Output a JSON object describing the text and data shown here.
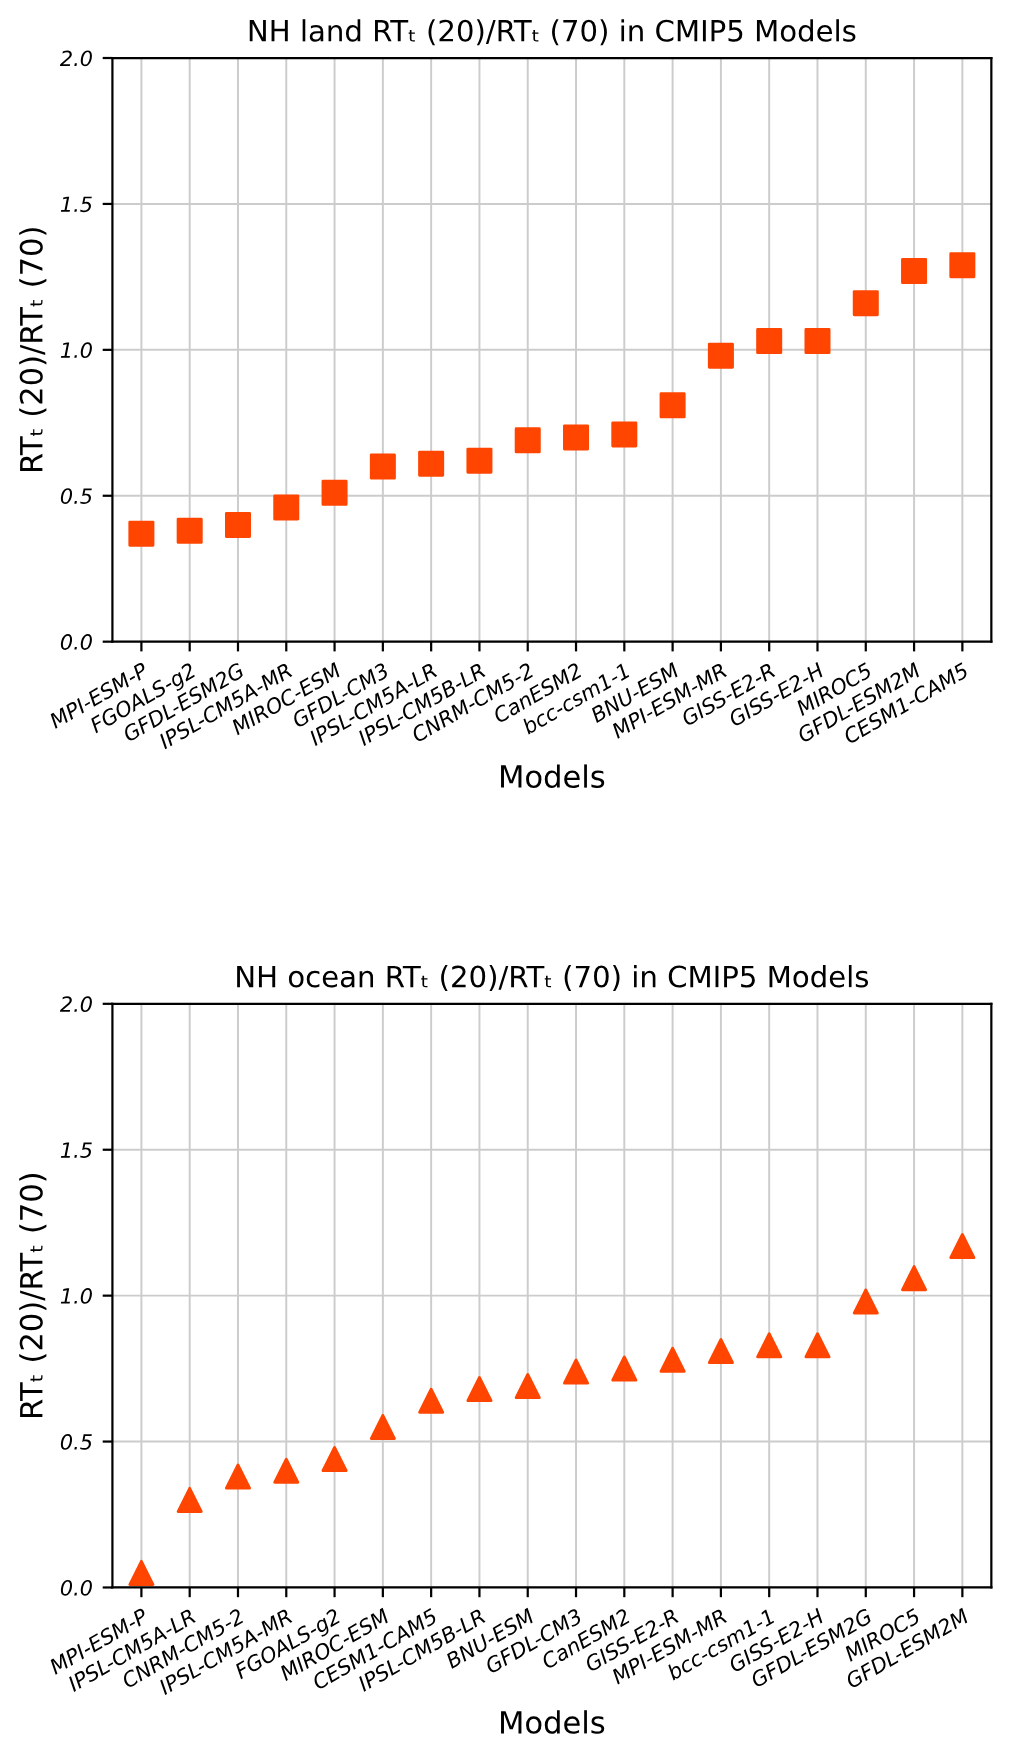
{
  "chart_data": [
    {
      "type": "scatter",
      "title": "NH land RTₜ (20)/RTₜ (70) in CMIP5 Models",
      "xlabel": "Models",
      "ylabel": "RTₜ (20)/RTₜ (70)",
      "categories": [
        "MPI-ESM-P",
        "FGOALS-g2",
        "GFDL-ESM2G",
        "IPSL-CM5A-MR",
        "MIROC-ESM",
        "GFDL-CM3",
        "IPSL-CM5A-LR",
        "IPSL-CM5B-LR",
        "CNRM-CM5-2",
        "CanESM2",
        "bcc-csm1-1",
        "BNU-ESM",
        "MPI-ESM-MR",
        "GISS-E2-R",
        "GISS-E2-H",
        "MIROC5",
        "GFDL-ESM2M",
        "CESM1-CAM5"
      ],
      "series": [
        {
          "color": "#ff4500",
          "values": [
            0.37,
            0.38,
            0.4,
            0.46,
            0.51,
            0.6,
            0.61,
            0.62,
            0.69,
            0.7,
            0.71,
            0.81,
            0.98,
            1.03,
            1.03,
            1.16,
            1.27,
            1.29
          ]
        }
      ],
      "marker": "square",
      "ylim": [
        0,
        2
      ],
      "yticks": [
        {
          "value": 0,
          "label": "0.0"
        },
        {
          "value": 0.5,
          "label": "0.5"
        },
        {
          "value": 1,
          "label": "1.0"
        },
        {
          "value": 1.5,
          "label": "1.5"
        },
        {
          "value": 2,
          "label": "2.0"
        }
      ],
      "grid": true
    },
    {
      "type": "scatter",
      "title": "NH ocean RTₜ (20)/RTₜ (70) in CMIP5 Models",
      "xlabel": "Models",
      "ylabel": "RTₜ (20)/RTₜ (70)",
      "categories": [
        "MPI-ESM-P",
        "IPSL-CM5A-LR",
        "CNRM-CM5-2",
        "IPSL-CM5A-MR",
        "FGOALS-g2",
        "MIROC-ESM",
        "CESM1-CAM5",
        "IPSL-CM5B-LR",
        "BNU-ESM",
        "GFDL-CM3",
        "CanESM2",
        "GISS-E2-R",
        "MPI-ESM-MR",
        "bcc-csm1-1",
        "GISS-E2-H",
        "GFDL-ESM2G",
        "MIROC5",
        "GFDL-ESM2M"
      ],
      "series": [
        {
          "color": "#ff4500",
          "values": [
            0.05,
            0.3,
            0.38,
            0.4,
            0.44,
            0.55,
            0.64,
            0.68,
            0.69,
            0.74,
            0.75,
            0.78,
            0.81,
            0.83,
            0.83,
            0.98,
            1.06,
            1.17
          ]
        }
      ],
      "marker": "triangle",
      "ylim": [
        0,
        2
      ],
      "yticks": [
        {
          "value": 0,
          "label": "0.0"
        },
        {
          "value": 0.5,
          "label": "0.5"
        },
        {
          "value": 1,
          "label": "1.0"
        },
        {
          "value": 1.5,
          "label": "1.5"
        },
        {
          "value": 2,
          "label": "2.0"
        }
      ],
      "grid": true
    }
  ]
}
